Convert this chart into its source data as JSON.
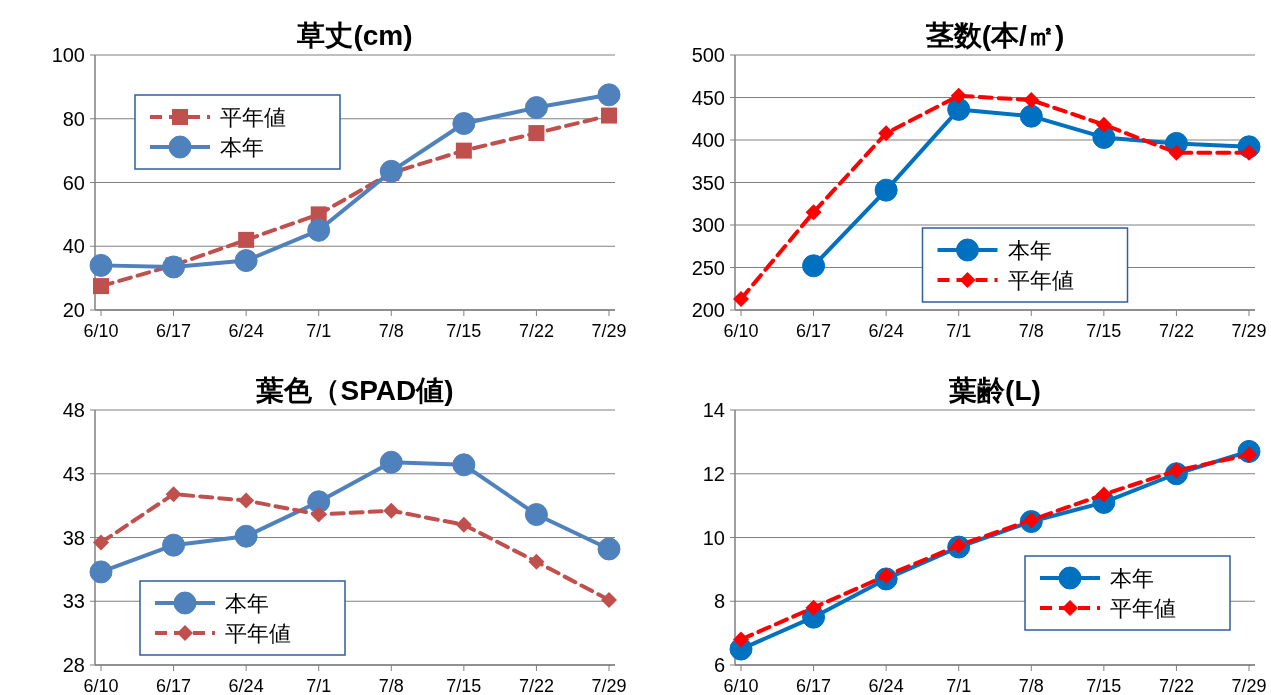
{
  "chart_data": [
    {
      "type": "line",
      "title": "草丈(cm)",
      "categories": [
        "6/10",
        "6/17",
        "6/24",
        "7/1",
        "7/8",
        "7/15",
        "7/22",
        "7/29"
      ],
      "ylim": [
        20,
        100
      ],
      "yticks": [
        20,
        40,
        60,
        80,
        100
      ],
      "grid": "y",
      "legend": "top left",
      "series": [
        {
          "name": "平年値",
          "color": "#c0504d",
          "marker": "square",
          "line_style": "dashed",
          "values": [
            27.5,
            34,
            42,
            50,
            63,
            70,
            75.5,
            81
          ]
        },
        {
          "name": "本年",
          "color": "#4f81bd",
          "marker": "circle",
          "line_style": "solid",
          "values": [
            34,
            33.5,
            35.5,
            45,
            63.5,
            78.5,
            83.5,
            87.5
          ]
        }
      ]
    },
    {
      "type": "line",
      "title": "茎数(本/㎡)",
      "categories": [
        "6/10",
        "6/17",
        "6/24",
        "7/1",
        "7/8",
        "7/15",
        "7/22",
        "7/29"
      ],
      "ylim": [
        200,
        500
      ],
      "yticks": [
        200,
        250,
        300,
        350,
        400,
        450,
        500
      ],
      "grid": "y",
      "legend": "bottom",
      "series": [
        {
          "name": "本年",
          "color": "#0070c0",
          "marker": "circle",
          "line_style": "solid",
          "values": [
            null,
            252,
            341,
            436,
            428,
            403,
            396,
            392
          ]
        },
        {
          "name": "平年値",
          "color": "#ff0000",
          "marker": "diamond",
          "line_style": "dashed",
          "values": [
            213,
            315,
            408,
            452,
            447,
            418,
            385,
            385
          ]
        }
      ]
    },
    {
      "type": "line",
      "title": "葉色（SPAD値)",
      "categories": [
        "6/10",
        "6/17",
        "6/24",
        "7/1",
        "7/8",
        "7/15",
        "7/22",
        "7/29"
      ],
      "ylim": [
        28,
        48
      ],
      "yticks": [
        28,
        33,
        38,
        43,
        48
      ],
      "grid": "y",
      "legend": "bottom left",
      "series": [
        {
          "name": "本年",
          "color": "#4f81bd",
          "marker": "circle",
          "line_style": "solid",
          "values": [
            35.3,
            37.4,
            38.1,
            40.8,
            43.9,
            43.7,
            39.8,
            37.1
          ]
        },
        {
          "name": "平年値",
          "color": "#c0504d",
          "marker": "diamond",
          "line_style": "dashed",
          "values": [
            37.6,
            41.4,
            40.9,
            39.8,
            40.1,
            39.0,
            36.1,
            33.1
          ]
        }
      ]
    },
    {
      "type": "line",
      "title": "葉齢(L)",
      "categories": [
        "6/10",
        "6/17",
        "6/24",
        "7/1",
        "7/8",
        "7/15",
        "7/22",
        "7/29"
      ],
      "ylim": [
        6,
        14
      ],
      "yticks": [
        6,
        8,
        10,
        12,
        14
      ],
      "grid": "y",
      "legend": "bottom right",
      "series": [
        {
          "name": "本年",
          "color": "#0070c0",
          "marker": "circle",
          "line_style": "solid",
          "values": [
            6.5,
            7.5,
            8.7,
            9.7,
            10.5,
            11.1,
            12.0,
            12.7
          ]
        },
        {
          "name": "平年値",
          "color": "#ff0000",
          "marker": "diamond",
          "line_style": "dashed",
          "values": [
            6.8,
            7.8,
            8.8,
            9.75,
            10.55,
            11.35,
            12.1,
            12.6
          ]
        }
      ]
    }
  ]
}
